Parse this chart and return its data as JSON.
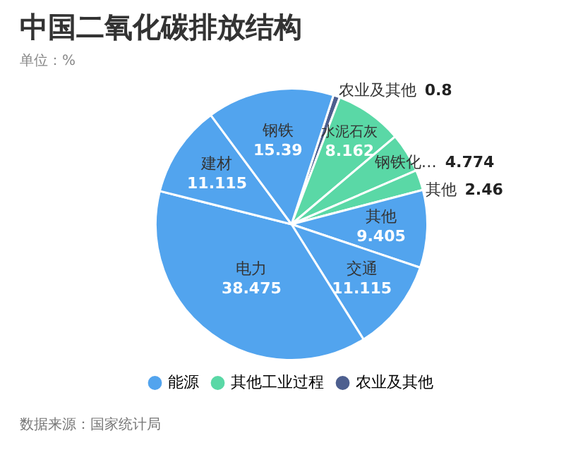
{
  "chart_data": {
    "type": "other",
    "title": "中国二氧化碳排放结构",
    "subtitle": "单位：%",
    "categories": [
      "农业及其他",
      "水泥石灰",
      "钢铁化…",
      "其他",
      "其他",
      "交通",
      "电力",
      "建材",
      "钢铁"
    ],
    "series": [
      {
        "name": "能源",
        "color": "#52a4ee",
        "values": [
          null,
          null,
          null,
          null,
          9.405,
          11.115,
          38.475,
          11.115,
          15.39
        ]
      },
      {
        "name": "其他工业过程",
        "color": "#5ad8a6",
        "values": [
          null,
          8.162,
          4.774,
          2.46,
          null,
          null,
          null,
          null,
          null
        ]
      },
      {
        "name": "农业及其他",
        "color": "#4d5f8f",
        "values": [
          0.8,
          null,
          null,
          null,
          null,
          null,
          null,
          null,
          null
        ]
      }
    ],
    "data_labels": true,
    "legend": "bottom",
    "annotations": [
      "数据来源：国家统计局"
    ]
  }
}
